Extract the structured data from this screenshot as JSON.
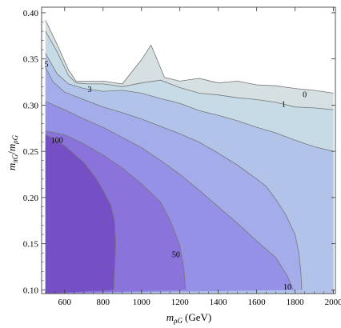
{
  "chart_data": {
    "type": "contour",
    "xlabel_base": "m",
    "xlabel_sub": "ρG",
    "xlabel_unit": "(GeV)",
    "ylabel_num_base": "m",
    "ylabel_num_sub": "πG",
    "ylabel_sep": "/",
    "ylabel_den_base": "m",
    "ylabel_den_sub": "ρG",
    "xlim": [
      480,
      2010
    ],
    "ylim": [
      0.096,
      0.406
    ],
    "x_ticks": [
      600,
      800,
      1000,
      1200,
      1400,
      1600,
      1800,
      2000
    ],
    "x_tick_labels": [
      "600",
      "800",
      "1000",
      "1200",
      "1400",
      "1600",
      "1800",
      "2000"
    ],
    "y_ticks": [
      0.1,
      0.15,
      0.2,
      0.25,
      0.3,
      0.35,
      0.4
    ],
    "y_tick_labels": [
      "0.10",
      "0.15",
      "0.20",
      "0.25",
      "0.30",
      "0.35",
      "0.40"
    ],
    "grid": false,
    "legend": false,
    "colors": {
      "background": "#ffffff",
      "frame": "#555555",
      "contour_line": "#777777",
      "levels": [
        "#d6dfe1",
        "#c6dbe6",
        "#b2c3e9",
        "#a4acea",
        "#9591e6",
        "#8a74dc",
        "#7550c5"
      ]
    },
    "levels": [
      {
        "threshold": "0",
        "label": "0",
        "label_at": [
          1850,
          0.311
        ],
        "boundary": [
          [
            500,
            0.392
          ],
          [
            560,
            0.366
          ],
          [
            620,
            0.338
          ],
          [
            660,
            0.326
          ],
          [
            800,
            0.326
          ],
          [
            900,
            0.323
          ],
          [
            1000,
            0.349
          ],
          [
            1050,
            0.365
          ],
          [
            1120,
            0.33
          ],
          [
            1200,
            0.326
          ],
          [
            1300,
            0.329
          ],
          [
            1400,
            0.324
          ],
          [
            1500,
            0.326
          ],
          [
            1600,
            0.322
          ],
          [
            1700,
            0.321
          ],
          [
            1800,
            0.318
          ],
          [
            1900,
            0.316
          ],
          [
            2000,
            0.313
          ]
        ]
      },
      {
        "threshold": "1",
        "label": "1",
        "label_at": [
          1740,
          0.301
        ],
        "boundary": [
          [
            500,
            0.38
          ],
          [
            560,
            0.358
          ],
          [
            620,
            0.332
          ],
          [
            660,
            0.324
          ],
          [
            720,
            0.323
          ],
          [
            800,
            0.323
          ],
          [
            900,
            0.32
          ],
          [
            1000,
            0.324
          ],
          [
            1100,
            0.327
          ],
          [
            1200,
            0.319
          ],
          [
            1300,
            0.313
          ],
          [
            1400,
            0.311
          ],
          [
            1500,
            0.308
          ],
          [
            1600,
            0.306
          ],
          [
            1700,
            0.303
          ],
          [
            1800,
            0.298
          ],
          [
            1900,
            0.297
          ],
          [
            2000,
            0.295
          ]
        ]
      },
      {
        "threshold": "3",
        "label": "3",
        "label_at": [
          730,
          0.317
        ],
        "boundary": [
          [
            500,
            0.356
          ],
          [
            560,
            0.334
          ],
          [
            620,
            0.323
          ],
          [
            700,
            0.318
          ],
          [
            800,
            0.315
          ],
          [
            900,
            0.316
          ],
          [
            1000,
            0.313
          ],
          [
            1100,
            0.307
          ],
          [
            1200,
            0.302
          ],
          [
            1300,
            0.294
          ],
          [
            1400,
            0.289
          ],
          [
            1500,
            0.283
          ],
          [
            1600,
            0.276
          ],
          [
            1700,
            0.27
          ],
          [
            1800,
            0.262
          ],
          [
            1900,
            0.255
          ],
          [
            2000,
            0.25
          ]
        ]
      },
      {
        "threshold": "5",
        "label": "5",
        "label_at": [
          505,
          0.344
        ],
        "boundary": [
          [
            500,
            0.341
          ],
          [
            540,
            0.325
          ],
          [
            600,
            0.314
          ],
          [
            700,
            0.306
          ],
          [
            800,
            0.298
          ],
          [
            900,
            0.292
          ],
          [
            1000,
            0.285
          ],
          [
            1100,
            0.277
          ],
          [
            1200,
            0.269
          ],
          [
            1300,
            0.26
          ],
          [
            1400,
            0.248
          ],
          [
            1500,
            0.235
          ],
          [
            1600,
            0.22
          ],
          [
            1650,
            0.212
          ],
          [
            1700,
            0.198
          ],
          [
            1750,
            0.182
          ],
          [
            1800,
            0.16
          ],
          [
            1820,
            0.14
          ],
          [
            1830,
            0.12
          ],
          [
            1835,
            0.1
          ]
        ]
      },
      {
        "threshold": "10",
        "label": "10",
        "label_at": [
          1760,
          0.103
        ],
        "boundary": [
          [
            500,
            0.304
          ],
          [
            600,
            0.295
          ],
          [
            700,
            0.285
          ],
          [
            800,
            0.276
          ],
          [
            900,
            0.265
          ],
          [
            1000,
            0.254
          ],
          [
            1100,
            0.24
          ],
          [
            1200,
            0.225
          ],
          [
            1300,
            0.208
          ],
          [
            1400,
            0.19
          ],
          [
            1500,
            0.172
          ],
          [
            1600,
            0.153
          ],
          [
            1700,
            0.135
          ],
          [
            1760,
            0.115
          ],
          [
            1790,
            0.1
          ]
        ]
      },
      {
        "threshold": "50",
        "label": "50",
        "label_at": [
          1180,
          0.138
        ],
        "boundary": [
          [
            500,
            0.272
          ],
          [
            600,
            0.268
          ],
          [
            700,
            0.258
          ],
          [
            800,
            0.246
          ],
          [
            900,
            0.232
          ],
          [
            1000,
            0.215
          ],
          [
            1100,
            0.195
          ],
          [
            1150,
            0.175
          ],
          [
            1200,
            0.148
          ],
          [
            1220,
            0.125
          ],
          [
            1230,
            0.1
          ]
        ]
      },
      {
        "threshold": "100",
        "label": "100",
        "label_at": [
          560,
          0.262
        ],
        "boundary": [
          [
            500,
            0.268
          ],
          [
            540,
            0.264
          ],
          [
            600,
            0.256
          ],
          [
            700,
            0.238
          ],
          [
            760,
            0.222
          ],
          [
            800,
            0.208
          ],
          [
            840,
            0.192
          ],
          [
            860,
            0.175
          ],
          [
            866,
            0.15
          ],
          [
            862,
            0.13
          ],
          [
            855,
            0.1
          ]
        ]
      }
    ]
  }
}
